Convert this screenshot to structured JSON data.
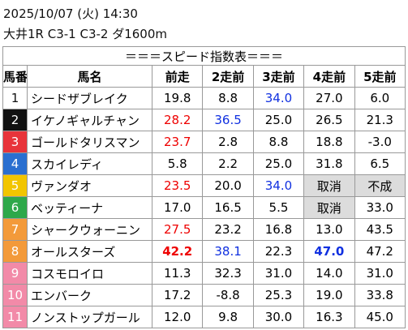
{
  "header": {
    "datetime": "2025/10/07 (火) 14:30",
    "race": "大井1R C3-1 C3-2 ダ1600m"
  },
  "table": {
    "title": "＝＝＝スピード指数表＝＝＝",
    "columns": [
      "馬番",
      "馬名",
      "前走",
      "2走前",
      "3走前",
      "4走前",
      "5走前"
    ],
    "rows": [
      [
        "1",
        "シードザブレイク",
        "19.8",
        "8.8",
        "34.0",
        "27.0",
        "6.0"
      ],
      [
        "2",
        "イケノギャルチャン",
        "28.2",
        "36.5",
        "25.0",
        "26.5",
        "21.3"
      ],
      [
        "3",
        "ゴールドタリスマン",
        "23.7",
        "2.8",
        "8.8",
        "18.8",
        "-3.0"
      ],
      [
        "4",
        "スカイレディ",
        "5.8",
        "2.2",
        "25.0",
        "31.8",
        "6.5"
      ],
      [
        "5",
        "ヴァンダオ",
        "23.5",
        "20.0",
        "34.0",
        "取消",
        "不成"
      ],
      [
        "6",
        "ベッティーナ",
        "17.0",
        "16.5",
        "5.5",
        "取消",
        "33.0"
      ],
      [
        "7",
        "シャークウォーニン",
        "27.5",
        "23.2",
        "16.8",
        "13.0",
        "43.5"
      ],
      [
        "8",
        "オールスターズ",
        "42.2",
        "38.1",
        "22.3",
        "47.0",
        "47.2"
      ],
      [
        "9",
        "コスモロイロ",
        "11.3",
        "32.3",
        "31.0",
        "14.0",
        "31.0"
      ],
      [
        "10",
        "エンバーク",
        "17.2",
        "-8.8",
        "25.3",
        "19.0",
        "33.8"
      ],
      [
        "11",
        "ノンストップガール",
        "12.0",
        "9.8",
        "30.0",
        "16.3",
        "45.0"
      ]
    ]
  }
}
